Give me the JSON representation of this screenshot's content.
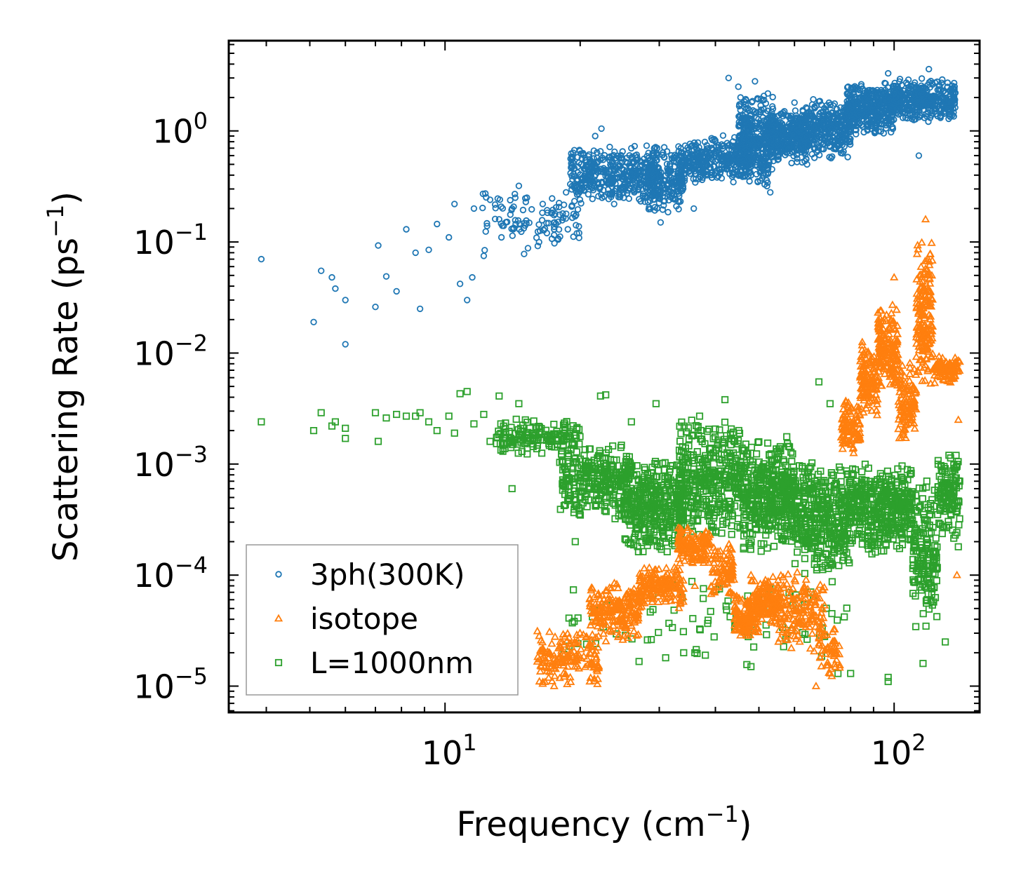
{
  "chart_data": {
    "type": "scatter",
    "title": "",
    "xlabel": {
      "text": "Frequency (cm",
      "sup": "−1",
      "tail": ")"
    },
    "ylabel": {
      "text": "Scattering Rate (ps",
      "sup": "−1",
      "tail": ")"
    },
    "xscale": "log",
    "yscale": "log",
    "xlim": [
      3.3,
      155
    ],
    "ylim": [
      5.8e-06,
      6.5
    ],
    "x_ticks": [
      {
        "value": 10,
        "base": "10",
        "exp": "1"
      },
      {
        "value": 100,
        "base": "10",
        "exp": "2"
      }
    ],
    "y_ticks": [
      {
        "value": 1,
        "base": "10",
        "exp": "0"
      },
      {
        "value": 0.1,
        "base": "10",
        "exp": "−1"
      },
      {
        "value": 0.01,
        "base": "10",
        "exp": "−2"
      },
      {
        "value": 0.001,
        "base": "10",
        "exp": "−3"
      },
      {
        "value": 0.0001,
        "base": "10",
        "exp": "−4"
      },
      {
        "value": 1e-05,
        "base": "10",
        "exp": "−5"
      }
    ],
    "legend_position": "lower-left",
    "series": [
      {
        "name": "3ph(300K)",
        "marker": "circle",
        "color": "#1f77b4",
        "points": [
          [
            3.9,
            0.07
          ],
          [
            5.1,
            0.019
          ],
          [
            5.3,
            0.055
          ],
          [
            5.6,
            0.048
          ],
          [
            5.7,
            0.038
          ],
          [
            6.0,
            0.012
          ],
          [
            6.0,
            0.03
          ],
          [
            7.0,
            0.026
          ],
          [
            7.1,
            0.093
          ],
          [
            7.4,
            0.049
          ],
          [
            7.8,
            0.036
          ],
          [
            8.2,
            0.13
          ],
          [
            8.6,
            0.08
          ],
          [
            8.8,
            0.025
          ],
          [
            9.2,
            0.085
          ],
          [
            9.6,
            0.145
          ],
          [
            10.2,
            0.11
          ],
          [
            10.5,
            0.22
          ],
          [
            10.8,
            0.042
          ],
          [
            11.2,
            0.03
          ],
          [
            11.5,
            0.048
          ],
          [
            11.6,
            0.2
          ],
          [
            12.2,
            0.075
          ],
          [
            12.6,
            0.24
          ],
          [
            13.2,
            0.16
          ],
          [
            14.1,
            0.2
          ],
          [
            14.6,
            0.32
          ],
          [
            15.0,
            0.078
          ],
          [
            15.3,
            0.088
          ],
          [
            16.5,
            0.22
          ],
          [
            17.5,
            0.13
          ],
          [
            18.6,
            0.28
          ],
          [
            20.1,
            0.5
          ],
          [
            21.6,
            0.9
          ],
          [
            22.3,
            1.05
          ],
          [
            23.8,
            0.22
          ],
          [
            26.5,
            0.6
          ],
          [
            27.9,
            0.25
          ],
          [
            30.2,
            0.15
          ],
          [
            33.6,
            0.4
          ],
          [
            35.8,
            0.2
          ],
          [
            38.5,
            0.6
          ],
          [
            42.8,
            3.0
          ],
          [
            45.0,
            2.5
          ],
          [
            49.0,
            2.8
          ],
          [
            53.0,
            0.28
          ],
          [
            58.5,
            0.9
          ],
          [
            60.0,
            1.8
          ],
          [
            64.0,
            0.5
          ],
          [
            70.5,
            1.5
          ],
          [
            74.0,
            0.7
          ],
          [
            79.0,
            2.5
          ],
          [
            86.0,
            2.3
          ],
          [
            97.0,
            3.3
          ],
          [
            107.0,
            1.3
          ],
          [
            113.5,
            0.6
          ],
          [
            119.5,
            3.6
          ],
          [
            128.0,
            2.9
          ],
          [
            136.0,
            2.7
          ]
        ],
        "bands": [
          {
            "x": [
              12.0,
              20.0
            ],
            "lo": 0.08,
            "hi": 0.3,
            "count": 110
          },
          {
            "x": [
              19.0,
              30.0
            ],
            "lo": 0.22,
            "hi": 0.75,
            "count": 440
          },
          {
            "x": [
              28.0,
              34.0
            ],
            "lo": 0.17,
            "hi": 0.8,
            "count": 200
          },
          {
            "x": [
              33.0,
              48.0
            ],
            "lo": 0.32,
            "hi": 0.95,
            "count": 340
          },
          {
            "x": [
              45.0,
              54.0
            ],
            "lo": 0.3,
            "hi": 2.2,
            "count": 380
          },
          {
            "x": [
              53.0,
              64.0
            ],
            "lo": 0.5,
            "hi": 1.6,
            "count": 320
          },
          {
            "x": [
              62.0,
              80.0
            ],
            "lo": 0.55,
            "hi": 2.0,
            "count": 340
          },
          {
            "x": [
              78.0,
              100.0
            ],
            "lo": 0.9,
            "hi": 2.8,
            "count": 380
          },
          {
            "x": [
              98.0,
              137.0
            ],
            "lo": 1.2,
            "hi": 3.0,
            "count": 400
          }
        ]
      },
      {
        "name": "isotope",
        "marker": "triangle",
        "color": "#ff7f0e",
        "points": [
          [
            16.5,
            1.05e-05
          ],
          [
            17.5,
            1e-05
          ],
          [
            19.0,
            1.2e-05
          ],
          [
            21.0,
            1.1e-05
          ],
          [
            26.0,
            3.5e-05
          ],
          [
            36.0,
            8e-05
          ],
          [
            48.0,
            0.0001
          ],
          [
            67.0,
            1e-05
          ],
          [
            72.0,
            1.3e-05
          ],
          [
            100.0,
            0.048
          ],
          [
            117.5,
            0.16
          ],
          [
            119.0,
            0.07
          ],
          [
            125.0,
            0.008
          ],
          [
            135.0,
            0.006
          ],
          [
            138.0,
            0.0001
          ],
          [
            139.0,
            0.0025
          ]
        ],
        "bands": [
          {
            "x": [
              16.0,
              22.0
            ],
            "lo": 1e-05,
            "hi": 3.5e-05,
            "count": 160
          },
          {
            "x": [
              21.0,
              27.0
            ],
            "lo": 2.5e-05,
            "hi": 9e-05,
            "count": 200
          },
          {
            "x": [
              27.0,
              34.0
            ],
            "lo": 5e-05,
            "hi": 0.00012,
            "count": 180
          },
          {
            "x": [
              33.0,
              39.0
            ],
            "lo": 0.00012,
            "hi": 0.00028,
            "count": 140
          },
          {
            "x": [
              39.0,
              44.0
            ],
            "lo": 6e-05,
            "hi": 0.0002,
            "count": 90
          },
          {
            "x": [
              44.0,
              50.0
            ],
            "lo": 2.5e-05,
            "hi": 7e-05,
            "count": 120
          },
          {
            "x": [
              48.0,
              56.0
            ],
            "lo": 3.5e-05,
            "hi": 0.0001,
            "count": 140
          },
          {
            "x": [
              55.0,
              70.0
            ],
            "lo": 2e-05,
            "hi": 0.00012,
            "count": 160
          },
          {
            "x": [
              68.0,
              76.0
            ],
            "lo": 1.2e-05,
            "hi": 3.5e-05,
            "count": 50
          },
          {
            "x": [
              76.0,
              84.0
            ],
            "lo": 0.0012,
            "hi": 0.004,
            "count": 100
          },
          {
            "x": [
              84.0,
              92.0
            ],
            "lo": 0.0025,
            "hi": 0.013,
            "count": 130
          },
          {
            "x": [
              92.0,
              102.0
            ],
            "lo": 0.004,
            "hi": 0.03,
            "count": 170
          },
          {
            "x": [
              102.0,
              112.0
            ],
            "lo": 0.0015,
            "hi": 0.009,
            "count": 110
          },
          {
            "x": [
              112.0,
              122.0
            ],
            "lo": 0.005,
            "hi": 0.11,
            "count": 170
          },
          {
            "x": [
              122.0,
              140.0
            ],
            "lo": 0.005,
            "hi": 0.01,
            "count": 90
          }
        ]
      },
      {
        "name": "L=1000nm",
        "marker": "square",
        "color": "#2ca02c",
        "points": [
          [
            3.9,
            0.0024
          ],
          [
            5.1,
            0.002
          ],
          [
            5.3,
            0.0029
          ],
          [
            5.6,
            0.0022
          ],
          [
            5.7,
            0.0024
          ],
          [
            6.0,
            0.0017
          ],
          [
            6.0,
            0.0021
          ],
          [
            7.0,
            0.0029
          ],
          [
            7.1,
            0.0016
          ],
          [
            7.4,
            0.0026
          ],
          [
            7.8,
            0.0028
          ],
          [
            8.2,
            0.0027
          ],
          [
            8.6,
            0.0027
          ],
          [
            8.8,
            0.0029
          ],
          [
            9.2,
            0.0024
          ],
          [
            9.6,
            0.002
          ],
          [
            10.2,
            0.0027
          ],
          [
            10.5,
            0.0019
          ],
          [
            10.8,
            0.0043
          ],
          [
            11.2,
            0.0045
          ],
          [
            11.6,
            0.0023
          ],
          [
            12.2,
            0.0028
          ],
          [
            12.6,
            0.0016
          ],
          [
            13.2,
            0.0041
          ],
          [
            14.1,
            0.0006
          ],
          [
            14.6,
            0.0035
          ],
          [
            15.1,
            0.0025
          ],
          [
            16.0,
            0.0021
          ],
          [
            19.5,
            0.0002
          ],
          [
            22.2,
            0.0041
          ],
          [
            22.8,
            0.0042
          ],
          [
            26.0,
            0.0024
          ],
          [
            29.5,
            0.0035
          ],
          [
            31.0,
            1.8e-05
          ],
          [
            34.0,
            2e-05
          ],
          [
            36.0,
            2e-05
          ],
          [
            38.0,
            1.9e-05
          ],
          [
            42.0,
            0.0038
          ],
          [
            48.0,
            1.5e-05
          ],
          [
            68.0,
            0.0055
          ],
          [
            72.0,
            0.0035
          ],
          [
            75.0,
            1.3e-05
          ],
          [
            80.0,
            1.3e-05
          ],
          [
            97.0,
            1.1e-05
          ],
          [
            97.0,
            1.2e-05
          ],
          [
            116.0,
            1.6e-05
          ],
          [
            130.0,
            2.5e-05
          ],
          [
            138.0,
            0.0004
          ],
          [
            139.0,
            0.00018
          ],
          [
            140.0,
            0.0007
          ]
        ],
        "bands": [
          {
            "x": [
              13.0,
              20.0
            ],
            "lo": 0.0012,
            "hi": 0.0026,
            "count": 150
          },
          {
            "x": [
              18.0,
              26.0
            ],
            "lo": 0.0003,
            "hi": 0.0016,
            "count": 300
          },
          {
            "x": [
              25.0,
              34.0
            ],
            "lo": 0.00015,
            "hi": 0.0012,
            "count": 360
          },
          {
            "x": [
              33.0,
              46.0
            ],
            "lo": 0.0002,
            "hi": 0.0028,
            "count": 380
          },
          {
            "x": [
              46.0,
              60.0
            ],
            "lo": 0.00015,
            "hi": 0.0018,
            "count": 420
          },
          {
            "x": [
              60.0,
              80.0
            ],
            "lo": 0.0001,
            "hi": 0.0011,
            "count": 380
          },
          {
            "x": [
              80.0,
              110.0
            ],
            "lo": 0.00015,
            "hi": 0.0011,
            "count": 420
          },
          {
            "x": [
              110.0,
              125.0
            ],
            "lo": 3e-05,
            "hi": 0.0008,
            "count": 160
          },
          {
            "x": [
              125.0,
              140.0
            ],
            "lo": 0.0002,
            "hi": 0.0015,
            "count": 120
          },
          {
            "x": [
              18.0,
              80.0
            ],
            "lo": 1.5e-05,
            "hi": 0.0001,
            "count": 90
          }
        ]
      }
    ]
  }
}
